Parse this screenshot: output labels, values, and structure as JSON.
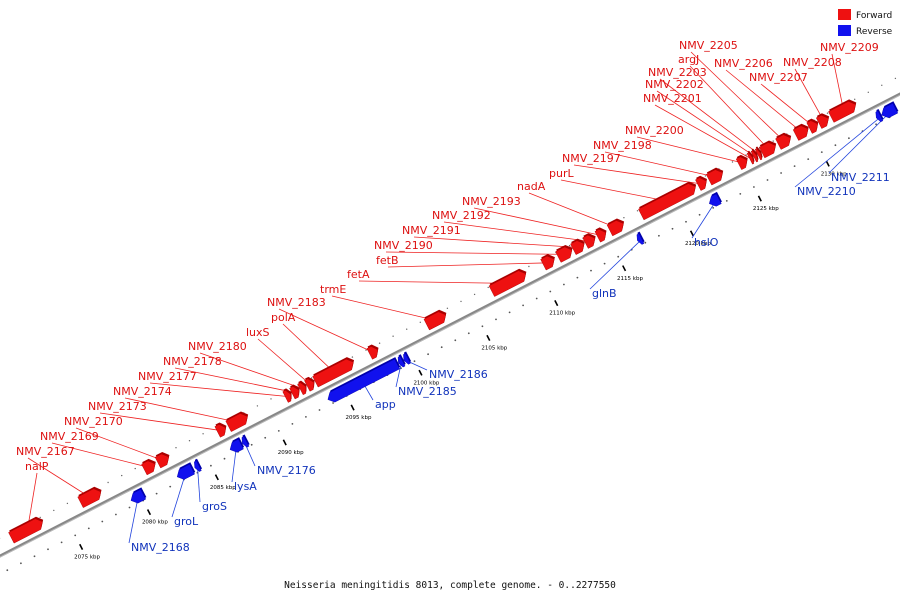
{
  "legend": [
    {
      "label": "Forward",
      "color": "#ee1111"
    },
    {
      "label": "Reverse",
      "color": "#1111ee"
    }
  ],
  "footer": "Neisseria meningitidis 8013, complete genome. - 0..2277550",
  "colors": {
    "forward": "#ee1111",
    "reverse": "#1111ee",
    "backbone": "#888888"
  },
  "ticks": [
    {
      "label": "2075 kbp",
      "kbp": 2075
    },
    {
      "label": "2080 kbp",
      "kbp": 2080
    },
    {
      "label": "2085 kbp",
      "kbp": 2085
    },
    {
      "label": "2090 kbp",
      "kbp": 2090
    },
    {
      "label": "2095 kbp",
      "kbp": 2095
    },
    {
      "label": "2100 kbp",
      "kbp": 2100
    },
    {
      "label": "2105 kbp",
      "kbp": 2105
    },
    {
      "label": "2110 kbp",
      "kbp": 2110
    },
    {
      "label": "2115 kbp",
      "kbp": 2115
    },
    {
      "label": "2120 kbp",
      "kbp": 2120
    },
    {
      "label": "2125 kbp",
      "kbp": 2125
    },
    {
      "label": "2130 kbp",
      "kbp": 2130
    }
  ],
  "forward_genes": [
    {
      "name": "nalP",
      "start": 2071.2,
      "end": 2073.5
    },
    {
      "name": "NMV_2167",
      "start": 2076.3,
      "end": 2077.8
    },
    {
      "name": "NMV_2169",
      "start": 2081.0,
      "end": 2081.8
    },
    {
      "name": "NMV_2170",
      "start": 2082.0,
      "end": 2082.8
    },
    {
      "name": "NMV_2173",
      "start": 2086.4,
      "end": 2087.0
    },
    {
      "name": "NMV_2174",
      "start": 2087.2,
      "end": 2088.6
    },
    {
      "name": "NMV_2177",
      "start": 2091.4,
      "end": 2091.8
    },
    {
      "name": "NMV_2178",
      "start": 2091.9,
      "end": 2092.4
    },
    {
      "name": "NMV_2180",
      "start": 2092.5,
      "end": 2092.9
    },
    {
      "name": "luxS",
      "start": 2093.0,
      "end": 2093.5
    },
    {
      "name": "polA",
      "start": 2093.6,
      "end": 2096.4
    },
    {
      "name": "NMV_2183",
      "start": 2097.6,
      "end": 2098.2
    },
    {
      "name": "trmE",
      "start": 2101.8,
      "end": 2103.2
    },
    {
      "name": "fetA",
      "start": 2106.6,
      "end": 2109.1
    },
    {
      "name": "fetB",
      "start": 2110.4,
      "end": 2111.2
    },
    {
      "name": "NMV_2190",
      "start": 2111.5,
      "end": 2112.5
    },
    {
      "name": "NMV_2191",
      "start": 2112.6,
      "end": 2113.4
    },
    {
      "name": "NMV_2192",
      "start": 2113.5,
      "end": 2114.2
    },
    {
      "name": "NMV_2193",
      "start": 2114.4,
      "end": 2115.0
    },
    {
      "name": "nadA",
      "start": 2115.3,
      "end": 2116.3
    },
    {
      "name": "purL",
      "start": 2117.6,
      "end": 2121.6
    },
    {
      "name": "NMV_2197",
      "start": 2121.8,
      "end": 2122.4
    },
    {
      "name": "NMV_2198",
      "start": 2122.6,
      "end": 2123.6
    },
    {
      "name": "NMV_2200",
      "start": 2124.8,
      "end": 2125.4
    },
    {
      "name": "NMV_2201",
      "start": 2125.6,
      "end": 2125.8
    },
    {
      "name": "NMV_2202",
      "start": 2125.9,
      "end": 2126.1
    },
    {
      "name": "NMV_2203",
      "start": 2126.2,
      "end": 2126.4
    },
    {
      "name": "argJ",
      "start": 2126.5,
      "end": 2127.5
    },
    {
      "name": "NMV_2205",
      "start": 2127.7,
      "end": 2128.6
    },
    {
      "name": "NMV_2206",
      "start": 2129.0,
      "end": 2129.9
    },
    {
      "name": "NMV_2207",
      "start": 2130.0,
      "end": 2130.6
    },
    {
      "name": "NMV_2208",
      "start": 2130.7,
      "end": 2131.4
    },
    {
      "name": "NMV_2209",
      "start": 2131.6,
      "end": 2133.4
    }
  ],
  "reverse_genes": [
    {
      "name": "NMV_2168",
      "start": 2079.3,
      "end": 2080.2
    },
    {
      "name": "groL",
      "start": 2082.7,
      "end": 2083.8
    },
    {
      "name": "groS",
      "start": 2084.0,
      "end": 2084.3
    },
    {
      "name": "lysA",
      "start": 2086.6,
      "end": 2087.4
    },
    {
      "name": "NMV_2176",
      "start": 2087.5,
      "end": 2087.8
    },
    {
      "name": "app",
      "start": 2093.8,
      "end": 2098.9
    },
    {
      "name": "NMV_2185",
      "start": 2099.0,
      "end": 2099.3
    },
    {
      "name": "NMV_2186",
      "start": 2099.4,
      "end": 2099.7
    },
    {
      "name": "glnB",
      "start": 2116.6,
      "end": 2116.9
    },
    {
      "name": "hslO",
      "start": 2121.9,
      "end": 2122.6
    },
    {
      "name": "NMV_2210",
      "start": 2134.2,
      "end": 2134.5
    },
    {
      "name": "NMV_2211",
      "start": 2134.6,
      "end": 2135.6
    }
  ]
}
